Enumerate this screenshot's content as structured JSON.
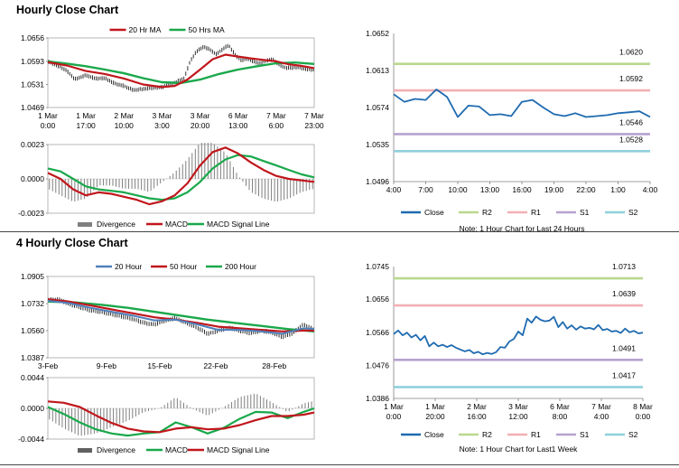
{
  "sections": [
    {
      "title": "Hourly Close Chart"
    },
    {
      "title": "4 Hourly Close Chart"
    }
  ],
  "colors": {
    "ma_red": "#c0171c",
    "ma_green": "#1aa84b",
    "ma_blue": "#4f81bd",
    "price_black": "#1a1a1a",
    "divergence": "#7f7f7f",
    "close_line": "#1f6bb0",
    "R2": "#b9d88d",
    "R1": "#f2b0b4",
    "S1": "#b6a2cf",
    "S2": "#8fd0dc"
  },
  "chart_data": [
    {
      "id": "hourly-price",
      "type": "line",
      "xlim": [
        0,
        168
      ],
      "ylim": [
        1.0469,
        1.0656
      ],
      "yticks": [
        "1.0656",
        "1.0593",
        "1.0531",
        "1.0469"
      ],
      "x_tick_positions": [
        0,
        24,
        48,
        72,
        96,
        120,
        144,
        168
      ],
      "x_tick_labels": [
        [
          "1 Mar",
          "0:00"
        ],
        [
          "1 Mar",
          "17:00"
        ],
        [
          "2 Mar",
          "10:00"
        ],
        [
          "3 Mar",
          "3:00"
        ],
        [
          "3 Mar",
          "20:00"
        ],
        [
          "6 Mar",
          "13:00"
        ],
        [
          "7 Mar",
          "6:00"
        ],
        [
          "7 Mar",
          "23:00"
        ]
      ],
      "legend": [
        "20 Hr MA",
        "50 Hrs MA"
      ],
      "price": {
        "x": [
          0,
          8,
          12,
          17,
          24,
          30,
          36,
          42,
          48,
          54,
          60,
          66,
          72,
          76,
          80,
          86,
          90,
          94,
          98,
          102,
          106,
          110,
          114,
          118,
          122,
          126,
          130,
          134,
          138,
          142,
          146,
          150,
          154,
          158,
          162,
          166,
          168
        ],
        "y": [
          1.0593,
          1.0578,
          1.0568,
          1.0545,
          1.0556,
          1.0547,
          1.0548,
          1.0534,
          1.0527,
          1.0516,
          1.0519,
          1.0522,
          1.0524,
          1.0531,
          1.0536,
          1.0548,
          1.0596,
          1.0621,
          1.0632,
          1.0626,
          1.0612,
          1.0625,
          1.0637,
          1.0611,
          1.0596,
          1.0601,
          1.0592,
          1.0588,
          1.0596,
          1.0598,
          1.0584,
          1.0576,
          1.0576,
          1.0578,
          1.0573,
          1.0571,
          1.0572
        ]
      },
      "series": [
        {
          "name": "20 Hr MA",
          "x": [
            0,
            12,
            24,
            36,
            48,
            60,
            72,
            80,
            88,
            96,
            104,
            112,
            120,
            128,
            136,
            144,
            152,
            160,
            168
          ],
          "y": [
            1.0591,
            1.0582,
            1.0567,
            1.0559,
            1.0547,
            1.0531,
            1.0524,
            1.0527,
            1.0544,
            1.0571,
            1.0599,
            1.0611,
            1.0606,
            1.0601,
            1.0597,
            1.0593,
            1.0585,
            1.0581,
            1.0575
          ]
        },
        {
          "name": "50 Hrs MA",
          "x": [
            0,
            12,
            24,
            36,
            48,
            60,
            72,
            84,
            96,
            108,
            120,
            132,
            144,
            156,
            168
          ],
          "y": [
            1.0593,
            1.0587,
            1.058,
            1.0571,
            1.0561,
            1.0548,
            1.0537,
            1.0535,
            1.0544,
            1.0559,
            1.0571,
            1.058,
            1.0588,
            1.059,
            1.0586
          ]
        }
      ]
    },
    {
      "id": "hourly-macd",
      "type": "line",
      "xlim": [
        0,
        168
      ],
      "ylim": [
        -0.0023,
        0.0023
      ],
      "yticks": [
        "0.0023",
        "0.0000",
        "-0.0023"
      ],
      "legend": [
        "Divergence",
        "MACD",
        "MACD Signal Line"
      ],
      "series": [
        {
          "name": "MACD",
          "x": [
            0,
            8,
            16,
            24,
            32,
            40,
            48,
            56,
            64,
            72,
            80,
            88,
            96,
            104,
            112,
            120,
            128,
            136,
            144,
            152,
            160,
            168
          ],
          "y": [
            0.0004,
            0.0,
            -0.0007,
            -0.0011,
            -0.0009,
            -0.001,
            -0.0012,
            -0.0014,
            -0.0017,
            -0.0015,
            -0.0011,
            -0.0003,
            0.0009,
            0.0018,
            0.0021,
            0.0017,
            0.0011,
            0.0006,
            0.0002,
            0.0,
            -0.0001,
            -0.0002
          ]
        },
        {
          "name": "MACD Signal Line",
          "x": [
            0,
            8,
            16,
            24,
            32,
            40,
            48,
            56,
            64,
            72,
            80,
            88,
            96,
            104,
            112,
            120,
            128,
            136,
            144,
            152,
            160,
            168
          ],
          "y": [
            0.0007,
            0.0005,
            0.0,
            -0.0005,
            -0.0007,
            -0.0008,
            -0.0009,
            -0.0011,
            -0.0013,
            -0.0014,
            -0.0013,
            -0.0009,
            -0.0002,
            0.0007,
            0.0013,
            0.0016,
            0.0015,
            0.0012,
            0.0009,
            0.0006,
            0.0003,
            0.0001
          ]
        }
      ]
    },
    {
      "id": "hourly-pivots",
      "type": "line",
      "ylim": [
        1.0496,
        1.0652
      ],
      "yticks": [
        "1.0652",
        "1.0613",
        "1.0574",
        "1.0535",
        "1.0496"
      ],
      "x_tick_labels": [
        "4:00",
        "7:00",
        "10:00",
        "13:00",
        "16:00",
        "19:00",
        "22:00",
        "1:00",
        "4:00"
      ],
      "levels": [
        {
          "name": "R2",
          "value": 1.062,
          "label": "1.0620"
        },
        {
          "name": "R1",
          "value": 1.0592,
          "label": "1.0592"
        },
        {
          "name": "S1",
          "value": 1.0546,
          "label": "1.0546"
        },
        {
          "name": "S2",
          "value": 1.0528,
          "label": "1.0528"
        }
      ],
      "close": {
        "x": [
          0,
          1,
          2,
          3,
          4,
          5,
          6,
          7,
          8,
          9,
          10,
          11,
          12,
          13,
          14,
          15,
          16,
          17,
          18,
          19,
          20,
          21,
          22,
          23,
          24
        ],
        "y": [
          1.0588,
          1.058,
          1.0583,
          1.0582,
          1.0593,
          1.0585,
          1.0564,
          1.0576,
          1.0575,
          1.0566,
          1.0567,
          1.0565,
          1.058,
          1.0582,
          1.0574,
          1.0567,
          1.0565,
          1.0568,
          1.0564,
          1.0565,
          1.0566,
          1.0568,
          1.0569,
          1.057,
          1.0564
        ]
      },
      "legend": [
        "Close",
        "R2",
        "R1",
        "S1",
        "S2"
      ],
      "note": "Note: 1 Hour Chart for Last 24 Hours"
    },
    {
      "id": "4h-price",
      "type": "line",
      "xlim": [
        0,
        100
      ],
      "ylim": [
        1.0387,
        1.0905
      ],
      "yticks": [
        "1.0905",
        "1.0732",
        "1.0560",
        "1.0387"
      ],
      "x_tick_positions": [
        0,
        22,
        42,
        63,
        85
      ],
      "x_tick_labels": [
        "3-Feb",
        "9-Feb",
        "15-Feb",
        "22-Feb",
        "28-Feb"
      ],
      "legend": [
        "20 Hour",
        "50 Hour",
        "200 Hour"
      ],
      "price": {
        "x": [
          0,
          4,
          8,
          12,
          16,
          20,
          24,
          28,
          32,
          36,
          40,
          44,
          48,
          52,
          56,
          60,
          64,
          68,
          72,
          76,
          80,
          84,
          88,
          92,
          96,
          100
        ],
        "y": [
          1.0755,
          1.076,
          1.073,
          1.071,
          1.069,
          1.068,
          1.0665,
          1.065,
          1.0635,
          1.061,
          1.06,
          1.0625,
          1.064,
          1.061,
          1.058,
          1.054,
          1.056,
          1.058,
          1.056,
          1.0545,
          1.056,
          1.055,
          1.052,
          1.0545,
          1.06,
          1.0565
        ]
      },
      "series": [
        {
          "name": "20 Hour",
          "x": [
            0,
            8,
            16,
            24,
            32,
            40,
            48,
            56,
            64,
            72,
            80,
            88,
            96,
            100
          ],
          "y": [
            1.075,
            1.0735,
            1.0705,
            1.068,
            1.0655,
            1.0625,
            1.063,
            1.06,
            1.0565,
            1.0565,
            1.0555,
            1.054,
            1.0575,
            1.057
          ]
        },
        {
          "name": "50 Hour",
          "x": [
            0,
            8,
            16,
            24,
            32,
            40,
            48,
            56,
            64,
            72,
            80,
            88,
            96,
            100
          ],
          "y": [
            1.076,
            1.0745,
            1.072,
            1.0695,
            1.067,
            1.0645,
            1.063,
            1.061,
            1.0585,
            1.0575,
            1.0565,
            1.0555,
            1.056,
            1.056
          ]
        },
        {
          "name": "200 Hour",
          "x": [
            0,
            10,
            20,
            30,
            40,
            50,
            60,
            70,
            80,
            90,
            100
          ],
          "y": [
            1.0745,
            1.074,
            1.0725,
            1.0705,
            1.068,
            1.0655,
            1.063,
            1.061,
            1.059,
            1.057,
            1.0555
          ]
        }
      ]
    },
    {
      "id": "4h-macd",
      "type": "line",
      "xlim": [
        0,
        100
      ],
      "ylim": [
        -0.0044,
        0.0044
      ],
      "yticks": [
        "0.0044",
        "0.0000",
        "-0.0044"
      ],
      "legend": [
        "Divergence",
        "MACD",
        "MACD Signal Line"
      ],
      "series": [
        {
          "name": "MACD",
          "x": [
            0,
            6,
            12,
            18,
            24,
            30,
            36,
            42,
            48,
            54,
            60,
            66,
            72,
            78,
            84,
            90,
            96,
            100
          ],
          "y": [
            0.0002,
            -0.0008,
            -0.002,
            -0.003,
            -0.0036,
            -0.0039,
            -0.0036,
            -0.0034,
            -0.002,
            -0.0027,
            -0.0036,
            -0.0028,
            -0.0015,
            -0.0005,
            -0.0006,
            -0.0014,
            -0.0005,
            0.0
          ]
        },
        {
          "name": "MACD Signal Line",
          "x": [
            0,
            6,
            12,
            18,
            24,
            30,
            36,
            42,
            48,
            54,
            60,
            66,
            72,
            78,
            84,
            90,
            96,
            100
          ],
          "y": [
            0.001,
            0.0008,
            0.0002,
            -0.001,
            -0.0021,
            -0.0029,
            -0.0033,
            -0.0034,
            -0.0029,
            -0.0027,
            -0.003,
            -0.0029,
            -0.0024,
            -0.0017,
            -0.0011,
            -0.0011,
            -0.0009,
            -0.0006
          ]
        }
      ]
    },
    {
      "id": "4h-pivots",
      "type": "line",
      "ylim": [
        1.0386,
        1.0745
      ],
      "yticks": [
        "1.0745",
        "1.0656",
        "1.0566",
        "1.0476",
        "1.0386"
      ],
      "x_tick_labels": [
        [
          "1 Mar",
          "0:00"
        ],
        [
          "1 Mar",
          "20:00"
        ],
        [
          "2 Mar",
          "16:00"
        ],
        [
          "3 Mar",
          "12:00"
        ],
        [
          "6 Mar",
          "8:00"
        ],
        [
          "7 Mar",
          "4:00"
        ],
        [
          "8 Mar",
          "0:00"
        ]
      ],
      "levels": [
        {
          "name": "R2",
          "value": 1.0713,
          "label": "1.0713"
        },
        {
          "name": "R1",
          "value": 1.0639,
          "label": "1.0639"
        },
        {
          "name": "S1",
          "value": 1.0491,
          "label": "1.0491"
        },
        {
          "name": "S2",
          "value": 1.0417,
          "label": "1.0417"
        }
      ],
      "close": {
        "x": [
          0,
          3,
          6,
          9,
          12,
          15,
          18,
          21,
          24,
          27,
          30,
          33,
          36,
          39,
          42,
          45,
          48,
          51,
          54,
          57,
          60,
          63,
          66,
          69,
          72,
          75,
          78,
          81,
          84,
          87,
          90,
          93,
          96,
          99,
          102,
          105,
          108,
          111,
          114,
          117,
          120,
          123,
          126,
          129,
          132,
          135,
          138,
          141,
          144,
          147,
          150,
          153,
          156,
          159,
          162,
          165,
          168
        ],
        "y": [
          1.0561,
          1.0571,
          1.0558,
          1.0565,
          1.0552,
          1.0559,
          1.0544,
          1.0556,
          1.0528,
          1.0538,
          1.0528,
          1.0532,
          1.0526,
          1.0531,
          1.0524,
          1.0519,
          1.0514,
          1.0518,
          1.0509,
          1.0513,
          1.0506,
          1.051,
          1.0507,
          1.0512,
          1.0526,
          1.0524,
          1.0541,
          1.0548,
          1.0568,
          1.0558,
          1.0603,
          1.0592,
          1.0609,
          1.06,
          1.0596,
          1.0598,
          1.0608,
          1.058,
          1.0594,
          1.0576,
          1.0585,
          1.0573,
          1.0582,
          1.0576,
          1.0578,
          1.0574,
          1.0586,
          1.0572,
          1.0575,
          1.0568,
          1.057,
          1.0564,
          1.0576,
          1.0566,
          1.057,
          1.0563,
          1.0565
        ]
      },
      "legend": [
        "Close",
        "R2",
        "R1",
        "S1",
        "S2"
      ],
      "note": "Note: 1 Hour Chart for Last1 Week"
    }
  ]
}
